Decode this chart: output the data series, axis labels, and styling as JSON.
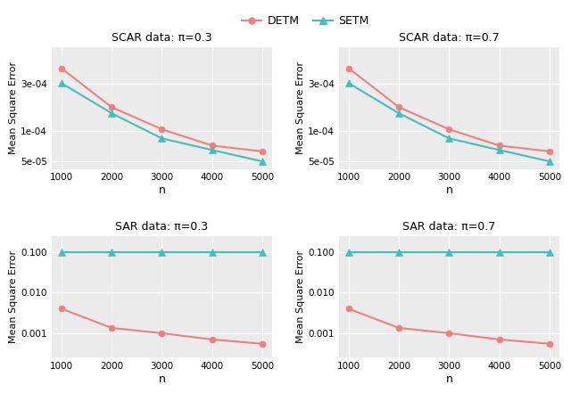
{
  "n": [
    1000,
    2000,
    3000,
    4000,
    5000
  ],
  "scar_03": {
    "DETM": [
      0.00043,
      0.000175,
      0.000105,
      7.2e-05,
      6.3e-05
    ],
    "SETM": [
      0.000305,
      0.000152,
      8.5e-05,
      6.5e-05,
      5e-05
    ]
  },
  "scar_07": {
    "DETM": [
      0.00043,
      0.000175,
      0.000105,
      7.2e-05,
      6.3e-05
    ],
    "SETM": [
      0.000305,
      0.000152,
      8.5e-05,
      6.5e-05,
      5e-05
    ]
  },
  "sar_03": {
    "DETM": [
      0.004,
      0.00135,
      0.001,
      0.0007,
      0.00055
    ],
    "SETM": [
      0.098,
      0.098,
      0.098,
      0.098,
      0.098
    ]
  },
  "sar_07": {
    "DETM": [
      0.004,
      0.00135,
      0.001,
      0.0007,
      0.00055
    ],
    "SETM": [
      0.098,
      0.098,
      0.098,
      0.098,
      0.098
    ]
  },
  "color_DETM": "#F08080",
  "color_SETM": "#40BFBF",
  "titles": [
    "SCAR data: π=0.3",
    "SCAR data: π=0.7",
    "SAR data: π=0.3",
    "SAR data: π=0.7"
  ],
  "ylabel": "Mean Square Error",
  "xlabel": "n",
  "panel_bg": "#EBEBEB",
  "grid_color": "#FFFFFF",
  "fig_bg": "#FFFFFF",
  "spine_color": "#FFFFFF"
}
